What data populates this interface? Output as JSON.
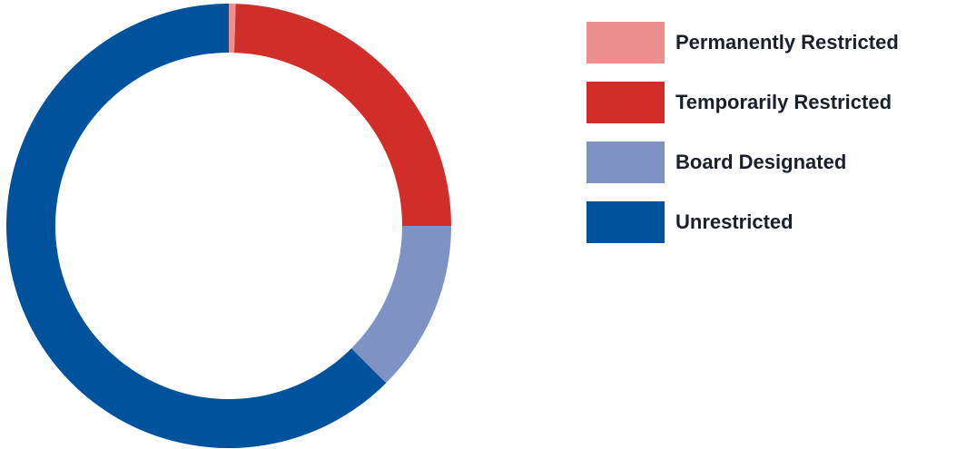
{
  "chart_data": {
    "type": "pie",
    "donut": true,
    "categories": [
      "Permanently Restricted",
      "Temporarily Restricted",
      "Board Designated",
      "Unrestricted"
    ],
    "values": [
      0.5,
      24.5,
      12.5,
      62.5
    ],
    "colors": [
      "#ee8f8f",
      "#d12e2a",
      "#7e93c4",
      "#01529c"
    ],
    "legend_position": "right"
  }
}
